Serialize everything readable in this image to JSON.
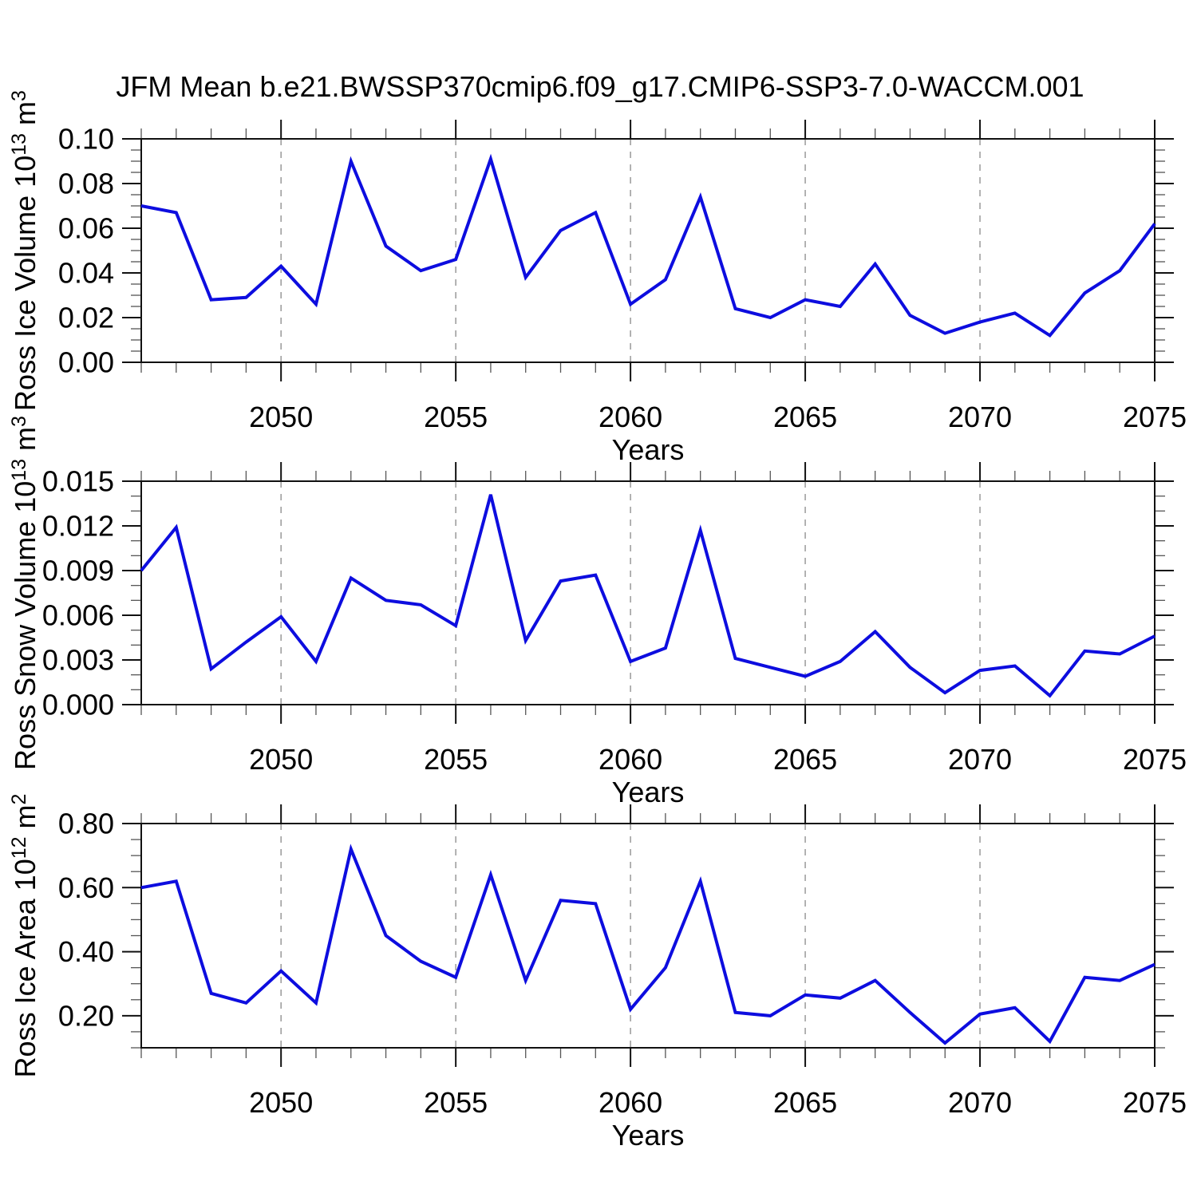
{
  "chart_data": {
    "type": "line",
    "title": "JFM Mean b.e21.BWSSP370cmip6.f09_g17.CMIP6-SSP3-7.0-WACCM.001",
    "x_label": "Years",
    "xlim": [
      2046,
      2075
    ],
    "xticks": [
      2050,
      2055,
      2060,
      2065,
      2070,
      2075
    ],
    "x_minor_step": 1,
    "grid": "vertical dashed lines at major x ticks",
    "legend": "none",
    "colors": {
      "series_line": "#0d0ddf",
      "gridline": "#999999",
      "axis": "#111111",
      "text": "#000000",
      "background": "#ffffff"
    },
    "years": [
      2046,
      2047,
      2048,
      2049,
      2050,
      2051,
      2052,
      2053,
      2054,
      2055,
      2056,
      2057,
      2058,
      2059,
      2060,
      2061,
      2062,
      2063,
      2064,
      2065,
      2066,
      2067,
      2068,
      2069,
      2070,
      2071,
      2072,
      2073,
      2074,
      2075
    ],
    "panels": [
      {
        "id": "ross-ice-volume",
        "ylabel": "Ross Ice Volume 10^13 m^3",
        "ylim": [
          0.0,
          0.1
        ],
        "yminor": 0.005,
        "yticks": [
          {
            "v": 0.0,
            "label": "0.00"
          },
          {
            "v": 0.02,
            "label": "0.02"
          },
          {
            "v": 0.04,
            "label": "0.04"
          },
          {
            "v": 0.06,
            "label": "0.06"
          },
          {
            "v": 0.08,
            "label": "0.08"
          },
          {
            "v": 0.1,
            "label": "0.10"
          }
        ],
        "values": [
          0.07,
          0.067,
          0.028,
          0.029,
          0.043,
          0.026,
          0.09,
          0.052,
          0.041,
          0.046,
          0.091,
          0.038,
          0.059,
          0.067,
          0.026,
          0.037,
          0.074,
          0.024,
          0.02,
          0.028,
          0.025,
          0.044,
          0.021,
          0.013,
          0.018,
          0.022,
          0.012,
          0.031,
          0.041,
          0.062
        ]
      },
      {
        "id": "ross-snow-volume",
        "ylabel": "Ross Snow Volume 10^13 m^3",
        "ylim": [
          0.0,
          0.015
        ],
        "yminor": 0.001,
        "yticks": [
          {
            "v": 0.0,
            "label": "0.000"
          },
          {
            "v": 0.003,
            "label": "0.003"
          },
          {
            "v": 0.006,
            "label": "0.006"
          },
          {
            "v": 0.009,
            "label": "0.009"
          },
          {
            "v": 0.012,
            "label": "0.012"
          },
          {
            "v": 0.015,
            "label": "0.015"
          }
        ],
        "values": [
          0.009,
          0.0119,
          0.0024,
          0.0042,
          0.0059,
          0.0029,
          0.0085,
          0.007,
          0.0067,
          0.0053,
          0.0141,
          0.0043,
          0.0083,
          0.0087,
          0.0029,
          0.0038,
          0.0117,
          0.0031,
          0.0025,
          0.0019,
          0.0029,
          0.0049,
          0.0025,
          0.0008,
          0.0023,
          0.0026,
          0.0006,
          0.0036,
          0.0034,
          0.0046
        ]
      },
      {
        "id": "ross-ice-area",
        "ylabel": "Ross Ice Area 10^12 m^2",
        "ylim": [
          0.1,
          0.8
        ],
        "yminor": 0.05,
        "yticks": [
          {
            "v": 0.2,
            "label": "0.20"
          },
          {
            "v": 0.4,
            "label": "0.40"
          },
          {
            "v": 0.6,
            "label": "0.60"
          },
          {
            "v": 0.8,
            "label": "0.80"
          }
        ],
        "values": [
          0.6,
          0.62,
          0.27,
          0.24,
          0.34,
          0.24,
          0.72,
          0.45,
          0.37,
          0.32,
          0.64,
          0.31,
          0.56,
          0.55,
          0.22,
          0.35,
          0.62,
          0.21,
          0.2,
          0.265,
          0.255,
          0.31,
          0.21,
          0.115,
          0.205,
          0.225,
          0.12,
          0.32,
          0.31,
          0.36
        ]
      }
    ]
  }
}
